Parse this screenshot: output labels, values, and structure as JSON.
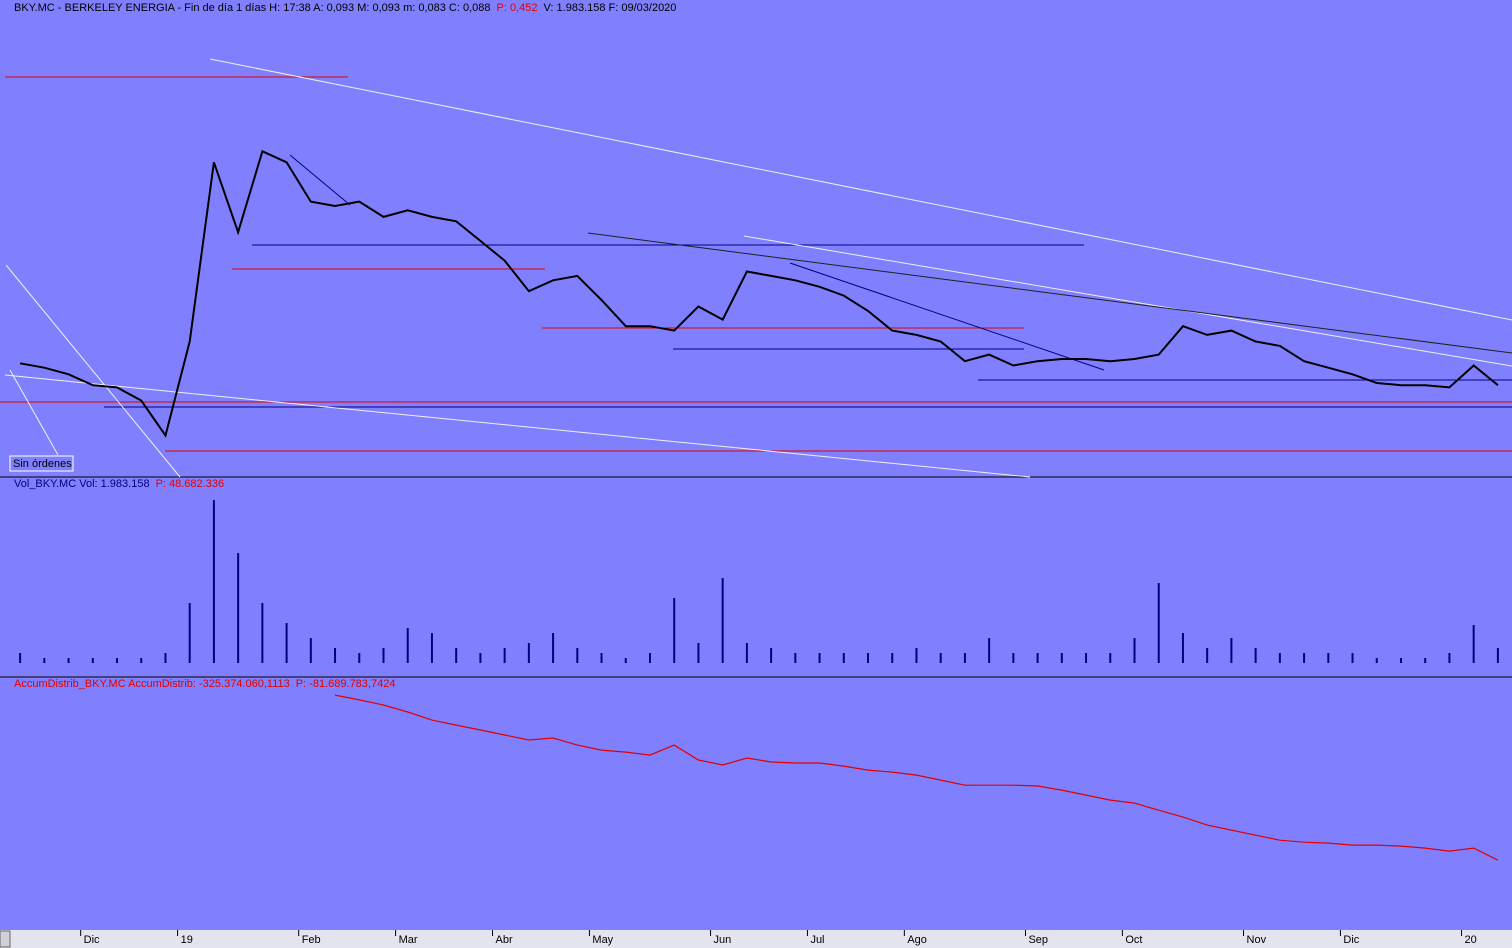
{
  "chart_data": [
    {
      "type": "line",
      "title": "BKY.MC - BERKELEY ENERGIA - Fin de día 1 días H: 17:38 A: 0,093 M: 0,093 m: 0,083 C: 0,088",
      "title_highlight": "P: 0,452",
      "title_end": "V: 1.983.158 F: 09/03/2020",
      "button": "Sin órdenes",
      "color": "#000000",
      "categories": [
        null,
        null,
        null,
        "Dic",
        null,
        null,
        null,
        "19",
        null,
        null,
        null,
        null,
        "Feb",
        null,
        null,
        null,
        "Mar",
        null,
        null,
        null,
        "Abr",
        null,
        null,
        null,
        "May",
        null,
        null,
        null,
        null,
        "Jun",
        null,
        null,
        null,
        "Jul",
        null,
        null,
        null,
        "Ago",
        null,
        null,
        null,
        null,
        "Sep",
        null,
        null,
        null,
        "Oct",
        null,
        null,
        null,
        null,
        "Nov",
        null,
        null,
        null,
        "Dic",
        null,
        null,
        null,
        null,
        "20",
        null
      ],
      "values": [
        0.098,
        0.096,
        0.093,
        0.088,
        0.087,
        0.081,
        0.065,
        0.108,
        0.19,
        0.158,
        0.195,
        0.19,
        0.172,
        0.17,
        0.172,
        0.165,
        0.168,
        0.165,
        0.163,
        0.154,
        0.145,
        0.131,
        0.136,
        0.138,
        0.127,
        0.115,
        0.115,
        0.113,
        0.124,
        0.118,
        0.14,
        0.138,
        0.136,
        0.133,
        0.129,
        0.122,
        0.113,
        0.111,
        0.108,
        0.099,
        0.102,
        0.097,
        0.099,
        0.1,
        0.1,
        0.099,
        0.1,
        0.102,
        0.115,
        0.111,
        0.113,
        0.108,
        0.106,
        0.099,
        0.096,
        0.093,
        0.089,
        0.088,
        0.088,
        0.087,
        0.097,
        0.088
      ],
      "ylim": [
        0.046,
        0.256
      ]
    },
    {
      "type": "bar",
      "title": "Vol_BKY.MC Vol: 1.983.158",
      "title_highlight": "P: 48.682.336",
      "color": "#000080",
      "values": [
        1300000,
        650000,
        650000,
        650000,
        650000,
        650000,
        1300000,
        7800000,
        21190000,
        14300000,
        7800000,
        5200000,
        3250000,
        1950000,
        1300000,
        1950000,
        4550000,
        3900000,
        1950000,
        1300000,
        1950000,
        2600000,
        3900000,
        1950000,
        1300000,
        650000,
        1300000,
        8450000,
        2600000,
        11050000,
        2600000,
        1950000,
        1300000,
        1300000,
        1300000,
        1300000,
        1300000,
        1950000,
        1300000,
        1300000,
        3250000,
        1300000,
        1300000,
        1300000,
        1300000,
        1300000,
        3250000,
        10400000,
        3900000,
        1950000,
        3250000,
        1950000,
        1300000,
        1300000,
        1300000,
        1300000,
        650000,
        650000,
        650000,
        1300000,
        4940000,
        1950000
      ],
      "ylim": [
        0,
        22500000
      ]
    },
    {
      "type": "line",
      "title": "AccumDistrib_BKY.MC AccumDistrib: -325.374.060,1113",
      "title_highlight": "P: -81.689.783,7424",
      "color": "#e00000",
      "values": [
        null,
        null,
        null,
        null,
        null,
        null,
        null,
        null,
        null,
        null,
        null,
        null,
        null,
        -207000000,
        -210400000,
        -213900000,
        -218800000,
        -224400000,
        -227900000,
        -231300000,
        -234800000,
        -238300000,
        -236900000,
        -241800000,
        -245300000,
        -246700000,
        -248800000,
        -241800000,
        -252200000,
        -255700000,
        -250800000,
        -253600000,
        -254300000,
        -254300000,
        -256400000,
        -259200000,
        -260600000,
        -262700000,
        -266200000,
        -269700000,
        -269700000,
        -269700000,
        -270300000,
        -273100000,
        -276600000,
        -280100000,
        -282200000,
        -287100000,
        -291900000,
        -297500000,
        -301000000,
        -304500000,
        -308000000,
        -309400000,
        -310000000,
        -311400000,
        -311400000,
        -312100000,
        -313500000,
        -315600000,
        -313500000,
        -321900000
      ],
      "ylim": [
        -367000000,
        -200000000
      ]
    }
  ]
}
